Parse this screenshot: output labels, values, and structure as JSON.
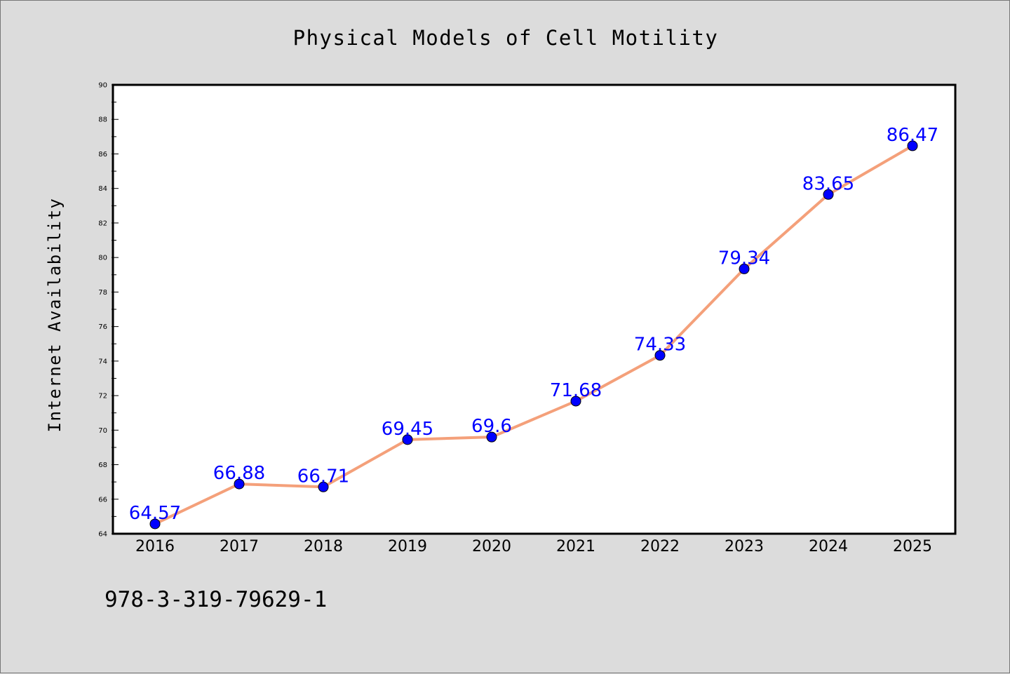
{
  "chart_data": {
    "type": "line",
    "title": "Physical Models of Cell Motility",
    "xlabel": "",
    "ylabel": "Internet Availability",
    "categories": [
      "2016",
      "2017",
      "2018",
      "2019",
      "2020",
      "2021",
      "2022",
      "2023",
      "2024",
      "2025"
    ],
    "series": [
      {
        "values": [
          64.57,
          66.88,
          66.71,
          69.45,
          69.6,
          71.68,
          74.33,
          79.34,
          83.65,
          86.47
        ],
        "data_labels": [
          "64.57",
          "66.88",
          "66.71",
          "69.45",
          "69.6",
          "71.68",
          "74.33",
          "79.34",
          "83.65",
          "86.47"
        ],
        "line_color": "#f4a07a",
        "marker_color": "#0000ff",
        "marker": "circle"
      }
    ],
    "ylim": [
      64,
      90
    ],
    "yticks": [
      64,
      66,
      68,
      70,
      72,
      74,
      76,
      78,
      80,
      82,
      84,
      86,
      88,
      90
    ],
    "grid": false,
    "legend": "none"
  },
  "annotation": "978-3-319-79629-1",
  "colors": {
    "background": "#dcdcdc",
    "plot_background": "#ffffff",
    "data_label": "#0000ff"
  }
}
